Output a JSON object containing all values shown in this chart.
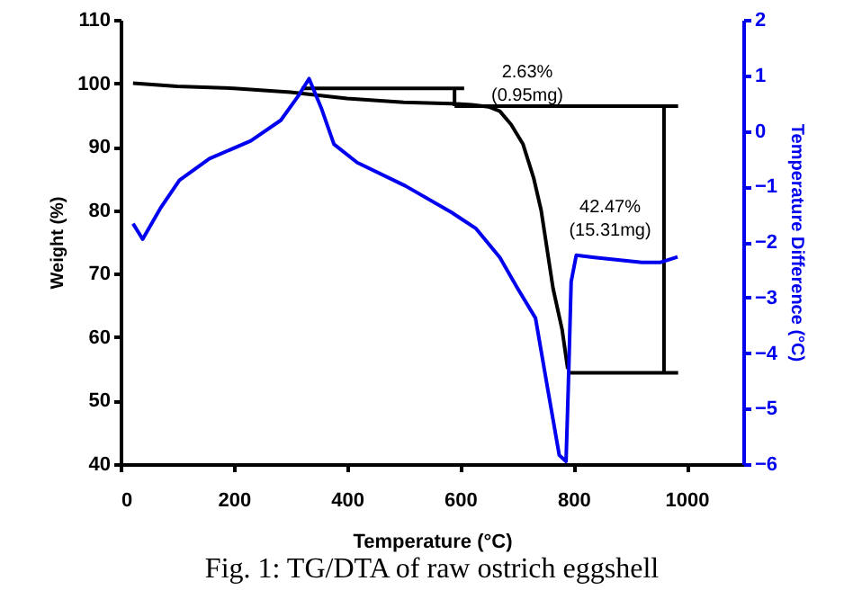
{
  "chart_data": {
    "type": "line",
    "xlabel": "Temperature (°C)",
    "ylabel": "Weight (%)",
    "y2label": "Temperature Difference (°C)",
    "xlim": [
      0,
      1100
    ],
    "xticks": [
      0,
      200,
      400,
      600,
      800,
      {
        "value": 1000,
        "label": "1000"
      }
    ],
    "ylim": [
      40,
      110
    ],
    "yticks": [
      40,
      50,
      60,
      70,
      80,
      90,
      100,
      110
    ],
    "y2lim": [
      -6,
      2
    ],
    "y2ticks": [
      -6,
      -5,
      -4,
      -3,
      -2,
      -1,
      0,
      1,
      2
    ],
    "series": [
      {
        "color": "#000000",
        "x": [
          22,
          100,
          200,
          300,
          400,
          500,
          585,
          620,
          650,
          670,
          690,
          711,
          730,
          743,
          764,
          780,
          790
        ],
        "values": [
          100,
          99.5,
          99.2,
          98.6,
          97.6,
          97.0,
          96.8,
          96.6,
          96.3,
          95.6,
          93.5,
          90.4,
          85,
          80,
          67.7,
          61.2,
          55
        ]
      },
      {
        "axis": "y2",
        "color": "#0000ee",
        "x": [
          22,
          39,
          70,
          104,
          157,
          230,
          283,
          314,
          333,
          355,
          377,
          418,
          503,
          585,
          628,
          670,
          701,
          733,
          755,
          775,
          787,
          791,
          796,
          805,
          837,
          921,
          953,
          984
        ],
        "values": [
          -1.67,
          -1.95,
          -1.4,
          -0.89,
          -0.5,
          -0.18,
          0.19,
          0.63,
          0.94,
          0.4,
          -0.24,
          -0.57,
          -0.99,
          -1.47,
          -1.76,
          -2.28,
          -2.83,
          -3.37,
          -4.67,
          -5.84,
          -5.95,
          -4.6,
          -2.72,
          -2.24,
          -2.28,
          -2.37,
          -2.37,
          -2.27
        ]
      },
      {
        "color": "#000000",
        "x": [
          320,
          607
        ],
        "values": [
          99.2,
          99.2
        ]
      },
      {
        "color": "#000000",
        "x": [
          590,
          590
        ],
        "values": [
          99.2,
          96.4
        ]
      },
      {
        "color": "#000000",
        "x": [
          590,
          985
        ],
        "values": [
          96.4,
          96.4
        ]
      },
      {
        "color": "#000000",
        "x": [
          960,
          960
        ],
        "values": [
          96.4,
          54.4
        ]
      },
      {
        "color": "#000000",
        "x": [
          790,
          985
        ],
        "values": [
          54.4,
          54.4
        ]
      }
    ],
    "annotations": [
      "2.63%\n(0.95mg)",
      "42.47%\n(15.31mg)",
      "Fig. 1: TG/DTA of raw ostrich eggshell"
    ],
    "grid": false
  }
}
